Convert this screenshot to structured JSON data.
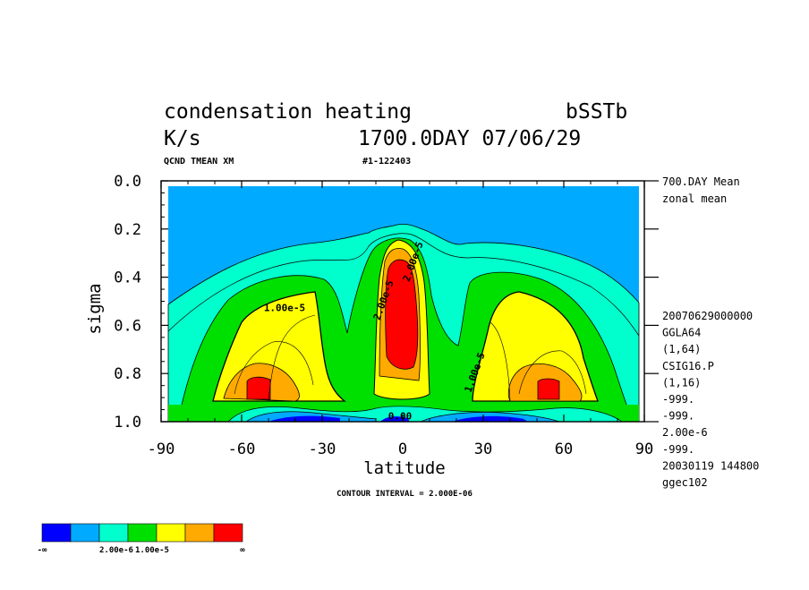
{
  "header": {
    "title_left": "condensation heating",
    "title_right": "bSST​b",
    "unit": "K/s",
    "time_label": "1700.0DAY 07/06/29",
    "var_label": "QCND TMEAN XM",
    "id_label": "#1-122403"
  },
  "right_info": {
    "mean_label": "700.DAY Mean",
    "zonal_label": "zonal mean",
    "meta": [
      "20070629000000",
      "GGLA64",
      "(1,64)",
      "CSIG16.P",
      "(1,16)",
      "-999.",
      "-999.",
      "2.00e-6",
      "-999.",
      "20030119 144800",
      "ggec102"
    ]
  },
  "footer": {
    "contour_interval": "CONTOUR INTERVAL = 2.000E-06"
  },
  "colorbar": {
    "colors": [
      "#0000ff",
      "#00aaff",
      "#00ffcc",
      "#00e000",
      "#ffff00",
      "#ffaa00",
      "#ff0000"
    ],
    "labels": [
      "-∞",
      "2.00e-6",
      "1.00e-5",
      "∞"
    ]
  },
  "chart_data": {
    "type": "heatmap",
    "xlabel": "latitude",
    "ylabel": "sigma",
    "xlim": [
      -90,
      90
    ],
    "ylim": [
      1.0,
      0.0
    ],
    "x_ticks": [
      -90,
      -60,
      -30,
      0,
      30,
      60,
      90
    ],
    "x_tick_labels": [
      "-90",
      "-60",
      "-30",
      "0",
      "30",
      "60",
      "90"
    ],
    "y_ticks": [
      0.0,
      0.2,
      0.4,
      0.6,
      0.8,
      1.0
    ],
    "y_tick_labels": [
      "0.0",
      "0.2",
      "0.4",
      "0.6",
      "0.8",
      "1.0"
    ],
    "contour_interval": 2e-06,
    "contour_labels": [
      {
        "text": "1.00e-5",
        "lat": -44,
        "sigma": 0.54
      },
      {
        "text": "2.00e-5",
        "lat": 5,
        "sigma": 0.34
      },
      {
        "text": "2.00e-5",
        "lat": -6,
        "sigma": 0.5
      },
      {
        "text": "1.00e-5",
        "lat": 28,
        "sigma": 0.8
      },
      {
        "text": "0.00",
        "lat": -1,
        "sigma": 0.99
      }
    ],
    "regions": [
      {
        "level": "blue",
        "description": "negative, near surface"
      },
      {
        "level": "red",
        "lat_center": -54,
        "sigma_center": 0.86
      },
      {
        "level": "red",
        "lat_center": 0,
        "sigma_center": 0.55
      },
      {
        "level": "red",
        "lat_center": 54,
        "sigma_center": 0.86
      }
    ]
  }
}
